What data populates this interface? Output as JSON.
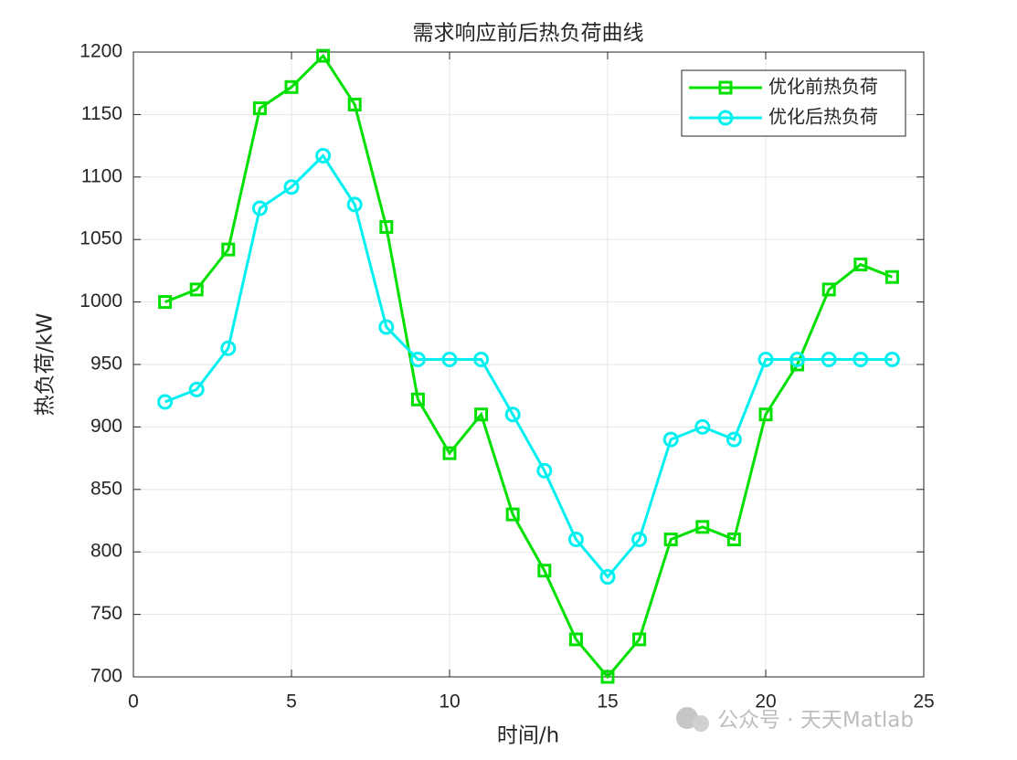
{
  "chart_data": {
    "type": "line",
    "title": "需求响应前后热负荷曲线",
    "xlabel": "时间/h",
    "ylabel": "热负荷/kW",
    "x": [
      1,
      2,
      3,
      4,
      5,
      6,
      7,
      8,
      9,
      10,
      11,
      12,
      13,
      14,
      15,
      16,
      17,
      18,
      19,
      20,
      21,
      22,
      23,
      24
    ],
    "series": [
      {
        "name": "优化前热负荷",
        "color": "#00e000",
        "marker": "square",
        "values": [
          1000,
          1010,
          1042,
          1155,
          1172,
          1197,
          1158,
          1060,
          922,
          879,
          910,
          830,
          785,
          730,
          700,
          730,
          810,
          820,
          810,
          910,
          950,
          1010,
          1030,
          1020
        ]
      },
      {
        "name": "优化后热负荷",
        "color": "#00f0f0",
        "marker": "circle",
        "values": [
          920,
          930,
          963,
          1075,
          1092,
          1117,
          1078,
          980,
          954,
          954,
          954,
          910,
          865,
          810,
          780,
          810,
          890,
          900,
          890,
          954,
          954,
          954,
          954,
          954
        ]
      }
    ],
    "xlim": [
      0,
      25
    ],
    "xticks": [
      0,
      5,
      10,
      15,
      20,
      25
    ],
    "ylim": [
      700,
      1200
    ],
    "yticks": [
      700,
      750,
      800,
      850,
      900,
      950,
      1000,
      1050,
      1100,
      1150,
      1200
    ],
    "grid": true,
    "legend": "top-right"
  },
  "watermark": "公众号 · 天天Matlab"
}
